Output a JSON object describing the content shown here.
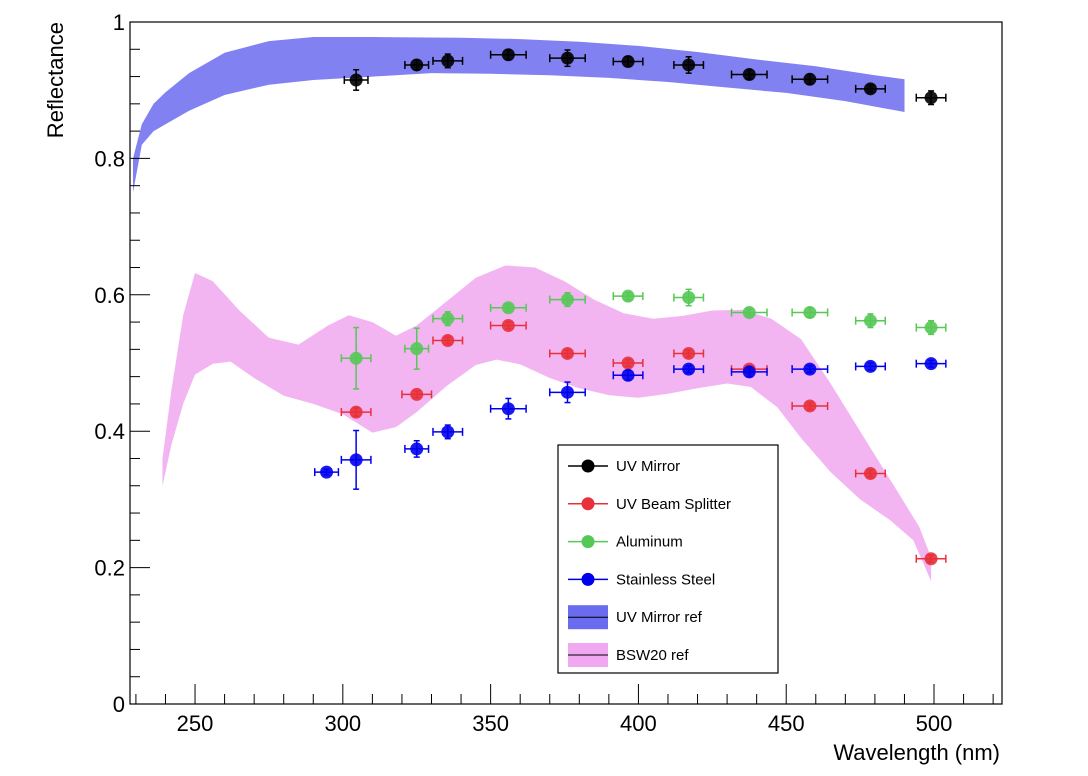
{
  "chart_data": {
    "type": "scatter",
    "title": "",
    "xlabel": "Wavelength (nm)",
    "ylabel": "Reflectance",
    "xlim": [
      228,
      523
    ],
    "ylim": [
      0,
      1.0
    ],
    "x_ticks": [
      250,
      300,
      350,
      400,
      450,
      500
    ],
    "x_tick_labels": [
      "250",
      "300",
      "350",
      "400",
      "450",
      "500"
    ],
    "y_ticks": [
      0,
      0.2,
      0.4,
      0.6,
      0.8,
      1.0
    ],
    "y_tick_labels": [
      "0",
      "0.2",
      "0.4",
      "0.6",
      "0.8",
      "1"
    ],
    "legend_position": "center-right",
    "series": [
      {
        "name": "UV Mirror",
        "color": "#000000",
        "kind": "points",
        "points": [
          {
            "x": 304.5,
            "y": 0.915,
            "xerr": 4,
            "yerr": 0.015
          },
          {
            "x": 325,
            "y": 0.937,
            "xerr": 4,
            "yerr": 0.007
          },
          {
            "x": 335.5,
            "y": 0.943,
            "xerr": 5,
            "yerr": 0.01
          },
          {
            "x": 356,
            "y": 0.952,
            "xerr": 6,
            "yerr": 0.007
          },
          {
            "x": 376,
            "y": 0.947,
            "xerr": 6,
            "yerr": 0.012
          },
          {
            "x": 396.5,
            "y": 0.942,
            "xerr": 5,
            "yerr": 0.007
          },
          {
            "x": 417,
            "y": 0.937,
            "xerr": 5,
            "yerr": 0.012
          },
          {
            "x": 437.5,
            "y": 0.923,
            "xerr": 6,
            "yerr": 0.007
          },
          {
            "x": 458,
            "y": 0.916,
            "xerr": 6,
            "yerr": 0.007
          },
          {
            "x": 478.5,
            "y": 0.902,
            "xerr": 5,
            "yerr": 0.005
          },
          {
            "x": 499,
            "y": 0.889,
            "xerr": 5,
            "yerr": 0.01
          }
        ]
      },
      {
        "name": "UV Beam Splitter",
        "color": "#e8303a",
        "kind": "points",
        "points": [
          {
            "x": 304.5,
            "y": 0.428,
            "xerr": 5,
            "yerr": 0.006
          },
          {
            "x": 325,
            "y": 0.454,
            "xerr": 5,
            "yerr": 0.005
          },
          {
            "x": 335.5,
            "y": 0.533,
            "xerr": 5,
            "yerr": 0.005
          },
          {
            "x": 356,
            "y": 0.555,
            "xerr": 6,
            "yerr": 0.005
          },
          {
            "x": 376,
            "y": 0.514,
            "xerr": 6,
            "yerr": 0.005
          },
          {
            "x": 396.5,
            "y": 0.5,
            "xerr": 5,
            "yerr": 0.005
          },
          {
            "x": 417,
            "y": 0.514,
            "xerr": 5,
            "yerr": 0.005
          },
          {
            "x": 437.5,
            "y": 0.491,
            "xerr": 6,
            "yerr": 0.005
          },
          {
            "x": 458,
            "y": 0.437,
            "xerr": 6,
            "yerr": 0.005
          },
          {
            "x": 478.5,
            "y": 0.338,
            "xerr": 5,
            "yerr": 0.005
          },
          {
            "x": 499,
            "y": 0.213,
            "xerr": 5,
            "yerr": 0.005
          }
        ]
      },
      {
        "name": "Aluminum",
        "color": "#55c855",
        "kind": "points",
        "points": [
          {
            "x": 304.5,
            "y": 0.507,
            "xerr": 5,
            "yerr": 0.045
          },
          {
            "x": 325,
            "y": 0.521,
            "xerr": 4,
            "yerr": 0.03
          },
          {
            "x": 335.5,
            "y": 0.565,
            "xerr": 5,
            "yerr": 0.01
          },
          {
            "x": 356,
            "y": 0.581,
            "xerr": 6,
            "yerr": 0.005
          },
          {
            "x": 376,
            "y": 0.593,
            "xerr": 6,
            "yerr": 0.01
          },
          {
            "x": 396.5,
            "y": 0.598,
            "xerr": 5,
            "yerr": 0.005
          },
          {
            "x": 417,
            "y": 0.596,
            "xerr": 5,
            "yerr": 0.012
          },
          {
            "x": 437.5,
            "y": 0.574,
            "xerr": 6,
            "yerr": 0.005
          },
          {
            "x": 458,
            "y": 0.574,
            "xerr": 6,
            "yerr": 0.007
          },
          {
            "x": 478.5,
            "y": 0.562,
            "xerr": 5,
            "yerr": 0.01
          },
          {
            "x": 499,
            "y": 0.552,
            "xerr": 5,
            "yerr": 0.01
          }
        ]
      },
      {
        "name": "Stainless Steel",
        "color": "#0000ee",
        "kind": "points",
        "points": [
          {
            "x": 294.5,
            "y": 0.34,
            "xerr": 4,
            "yerr": 0.004
          },
          {
            "x": 304.5,
            "y": 0.358,
            "xerr": 5,
            "yerr": 0.043
          },
          {
            "x": 325,
            "y": 0.374,
            "xerr": 4,
            "yerr": 0.012
          },
          {
            "x": 335.5,
            "y": 0.399,
            "xerr": 5,
            "yerr": 0.01
          },
          {
            "x": 356,
            "y": 0.433,
            "xerr": 6,
            "yerr": 0.015
          },
          {
            "x": 376,
            "y": 0.457,
            "xerr": 6,
            "yerr": 0.015
          },
          {
            "x": 396.5,
            "y": 0.482,
            "xerr": 5,
            "yerr": 0.007
          },
          {
            "x": 417,
            "y": 0.491,
            "xerr": 5,
            "yerr": 0.005
          },
          {
            "x": 437.5,
            "y": 0.487,
            "xerr": 6,
            "yerr": 0.007
          },
          {
            "x": 458,
            "y": 0.491,
            "xerr": 6,
            "yerr": 0.005
          },
          {
            "x": 478.5,
            "y": 0.495,
            "xerr": 5,
            "yerr": 0.005
          },
          {
            "x": 499,
            "y": 0.499,
            "xerr": 5,
            "yerr": 0.005
          }
        ]
      },
      {
        "name": "UV Mirror ref",
        "color": "#6b6bf0",
        "kind": "band",
        "upper": [
          [
            229,
            0.8
          ],
          [
            232,
            0.85
          ],
          [
            236,
            0.88
          ],
          [
            240,
            0.897
          ],
          [
            248,
            0.925
          ],
          [
            260,
            0.955
          ],
          [
            275,
            0.972
          ],
          [
            290,
            0.978
          ],
          [
            310,
            0.978
          ],
          [
            340,
            0.977
          ],
          [
            360,
            0.975
          ],
          [
            380,
            0.971
          ],
          [
            400,
            0.965
          ],
          [
            420,
            0.956
          ],
          [
            440,
            0.945
          ],
          [
            460,
            0.935
          ],
          [
            480,
            0.922
          ],
          [
            490,
            0.916
          ]
        ],
        "lower": [
          [
            229,
            0.75
          ],
          [
            232,
            0.82
          ],
          [
            236,
            0.84
          ],
          [
            240,
            0.85
          ],
          [
            248,
            0.87
          ],
          [
            260,
            0.893
          ],
          [
            275,
            0.908
          ],
          [
            290,
            0.915
          ],
          [
            310,
            0.92
          ],
          [
            330,
            0.925
          ],
          [
            350,
            0.924
          ],
          [
            370,
            0.922
          ],
          [
            390,
            0.918
          ],
          [
            410,
            0.912
          ],
          [
            430,
            0.904
          ],
          [
            450,
            0.896
          ],
          [
            470,
            0.884
          ],
          [
            490,
            0.868
          ]
        ]
      },
      {
        "name": "BSW20 ref",
        "color": "#f0a8f0",
        "kind": "band",
        "upper": [
          [
            239,
            0.36
          ],
          [
            242,
            0.46
          ],
          [
            246,
            0.57
          ],
          [
            250,
            0.632
          ],
          [
            256,
            0.62
          ],
          [
            265,
            0.577
          ],
          [
            275,
            0.537
          ],
          [
            285,
            0.527
          ],
          [
            295,
            0.555
          ],
          [
            302,
            0.57
          ],
          [
            310,
            0.56
          ],
          [
            318,
            0.54
          ],
          [
            325,
            0.555
          ],
          [
            335,
            0.59
          ],
          [
            345,
            0.625
          ],
          [
            355,
            0.643
          ],
          [
            365,
            0.64
          ],
          [
            375,
            0.62
          ],
          [
            385,
            0.593
          ],
          [
            395,
            0.573
          ],
          [
            405,
            0.565
          ],
          [
            415,
            0.569
          ],
          [
            425,
            0.577
          ],
          [
            435,
            0.578
          ],
          [
            445,
            0.565
          ],
          [
            455,
            0.535
          ],
          [
            465,
            0.47
          ],
          [
            475,
            0.4
          ],
          [
            485,
            0.33
          ],
          [
            495,
            0.26
          ],
          [
            499,
            0.215
          ]
        ],
        "lower": [
          [
            239,
            0.32
          ],
          [
            242,
            0.38
          ],
          [
            246,
            0.44
          ],
          [
            250,
            0.483
          ],
          [
            256,
            0.499
          ],
          [
            262,
            0.502
          ],
          [
            270,
            0.478
          ],
          [
            280,
            0.452
          ],
          [
            290,
            0.44
          ],
          [
            300,
            0.425
          ],
          [
            310,
            0.398
          ],
          [
            318,
            0.406
          ],
          [
            325,
            0.428
          ],
          [
            335,
            0.466
          ],
          [
            345,
            0.497
          ],
          [
            352,
            0.505
          ],
          [
            360,
            0.498
          ],
          [
            370,
            0.478
          ],
          [
            380,
            0.463
          ],
          [
            390,
            0.453
          ],
          [
            400,
            0.449
          ],
          [
            410,
            0.455
          ],
          [
            420,
            0.463
          ],
          [
            430,
            0.47
          ],
          [
            438,
            0.465
          ],
          [
            447,
            0.435
          ],
          [
            455,
            0.39
          ],
          [
            465,
            0.34
          ],
          [
            475,
            0.3
          ],
          [
            485,
            0.27
          ],
          [
            493,
            0.24
          ],
          [
            499,
            0.18
          ]
        ]
      }
    ]
  }
}
